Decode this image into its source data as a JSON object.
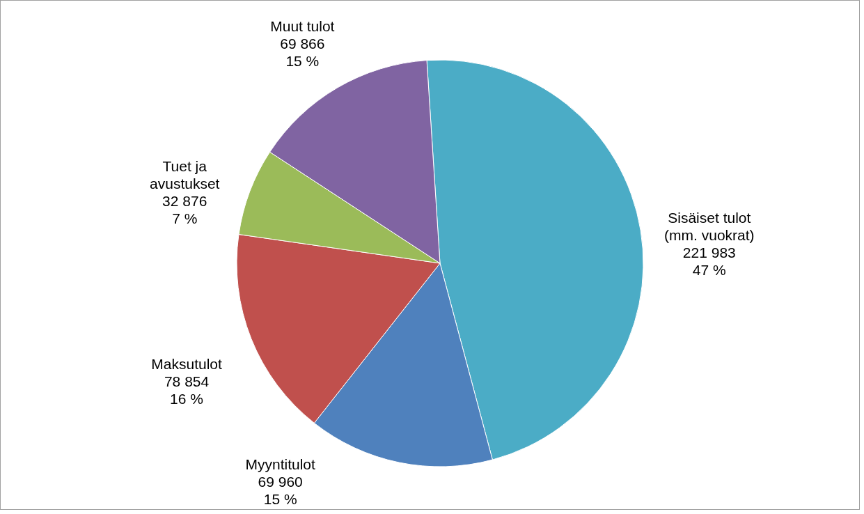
{
  "chart_data": {
    "type": "pie",
    "categories": [
      "Sisäiset tulot (mm. vuokrat)",
      "Myyntitulot",
      "Maksutulot",
      "Tuet ja avustukset",
      "Muut tulot"
    ],
    "values": [
      221983,
      69960,
      78854,
      32876,
      69866
    ],
    "value_labels": [
      "221 983\n47 %",
      "69 960\n15 %",
      "78 854\n16 %",
      "32 876\n7 %",
      "69 866\n15 %"
    ],
    "colors": [
      "#4bacc6",
      "#4f81bd",
      "#c0504d",
      "#9bbb59",
      "#8064a2"
    ]
  }
}
